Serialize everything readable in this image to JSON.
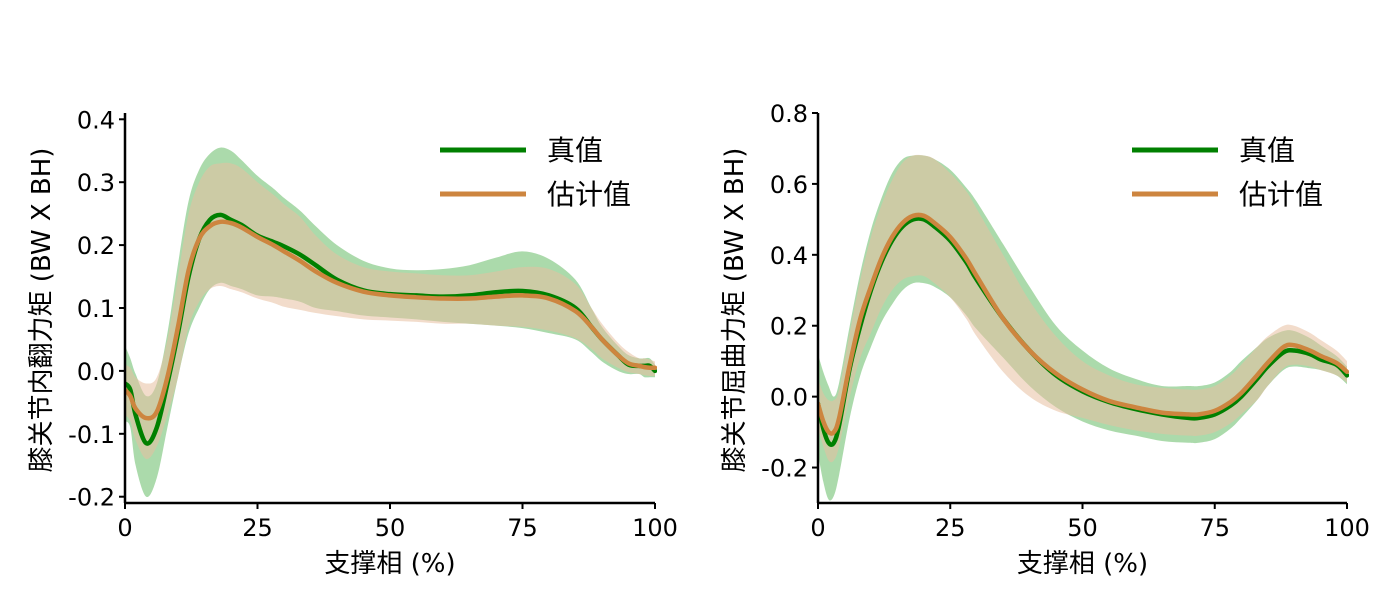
{
  "chart_data": [
    {
      "type": "line",
      "xlabel": "支撑相 (%)",
      "ylabel": "膝关节内翻力矩 (BW X BH)",
      "xlim": [
        0,
        100
      ],
      "ylim": [
        -0.21,
        0.41
      ],
      "xticks": [
        0,
        25,
        50,
        75,
        100
      ],
      "xtick_labels": [
        "0",
        "25",
        "50",
        "75",
        "100"
      ],
      "yticks": [
        -0.2,
        -0.1,
        0.0,
        0.1,
        0.2,
        0.3,
        0.4
      ],
      "ytick_labels": [
        "-0.2",
        "-0.1",
        "0.0",
        "0.1",
        "0.2",
        "0.3",
        "0.4"
      ],
      "grid": false,
      "legend_position": "top-right",
      "x": [
        0,
        1,
        2,
        4,
        6,
        8,
        10,
        12,
        14,
        16,
        18,
        20,
        22,
        25,
        28,
        30,
        33,
        36,
        40,
        45,
        50,
        55,
        60,
        65,
        70,
        75,
        80,
        85,
        88,
        90,
        93,
        95,
        97,
        98,
        99,
        100
      ],
      "series": [
        {
          "name": "真值",
          "color": "#008000",
          "mean": [
            -0.02,
            -0.03,
            -0.07,
            -0.115,
            -0.09,
            -0.02,
            0.06,
            0.15,
            0.21,
            0.24,
            0.248,
            0.24,
            0.232,
            0.215,
            0.205,
            0.198,
            0.185,
            0.168,
            0.145,
            0.128,
            0.122,
            0.12,
            0.118,
            0.12,
            0.125,
            0.127,
            0.12,
            0.1,
            0.07,
            0.05,
            0.025,
            0.01,
            0.008,
            0.008,
            0.008,
            0.0
          ],
          "upper": [
            0.04,
            0.02,
            -0.005,
            -0.04,
            -0.02,
            0.06,
            0.17,
            0.27,
            0.32,
            0.345,
            0.355,
            0.35,
            0.335,
            0.31,
            0.29,
            0.275,
            0.255,
            0.23,
            0.2,
            0.175,
            0.163,
            0.16,
            0.162,
            0.168,
            0.18,
            0.19,
            0.178,
            0.145,
            0.1,
            0.07,
            0.04,
            0.025,
            0.02,
            0.02,
            0.02,
            0.01
          ],
          "lower": [
            -0.08,
            -0.09,
            -0.15,
            -0.2,
            -0.17,
            -0.09,
            -0.01,
            0.06,
            0.1,
            0.13,
            0.14,
            0.135,
            0.13,
            0.12,
            0.118,
            0.115,
            0.11,
            0.1,
            0.095,
            0.088,
            0.085,
            0.082,
            0.078,
            0.075,
            0.072,
            0.068,
            0.06,
            0.05,
            0.03,
            0.015,
            0.0,
            -0.005,
            -0.005,
            -0.01,
            -0.01,
            -0.01
          ]
        },
        {
          "name": "估计值",
          "color": "#CD853F",
          "mean": [
            -0.03,
            -0.04,
            -0.06,
            -0.075,
            -0.065,
            -0.01,
            0.07,
            0.16,
            0.21,
            0.23,
            0.237,
            0.235,
            0.228,
            0.213,
            0.2,
            0.19,
            0.175,
            0.158,
            0.14,
            0.126,
            0.12,
            0.117,
            0.115,
            0.115,
            0.118,
            0.12,
            0.115,
            0.095,
            0.07,
            0.05,
            0.025,
            0.012,
            0.008,
            0.006,
            0.005,
            0.005
          ],
          "upper": [
            0.01,
            0.005,
            -0.01,
            -0.02,
            -0.01,
            0.05,
            0.15,
            0.25,
            0.3,
            0.325,
            0.33,
            0.33,
            0.322,
            0.3,
            0.28,
            0.265,
            0.245,
            0.215,
            0.185,
            0.165,
            0.158,
            0.155,
            0.152,
            0.152,
            0.158,
            0.165,
            0.162,
            0.138,
            0.1,
            0.075,
            0.045,
            0.03,
            0.02,
            0.02,
            0.018,
            0.015
          ],
          "lower": [
            -0.07,
            -0.08,
            -0.11,
            -0.14,
            -0.12,
            -0.07,
            -0.01,
            0.07,
            0.11,
            0.13,
            0.135,
            0.13,
            0.125,
            0.115,
            0.108,
            0.102,
            0.097,
            0.092,
            0.087,
            0.082,
            0.08,
            0.078,
            0.075,
            0.075,
            0.072,
            0.07,
            0.064,
            0.052,
            0.035,
            0.02,
            0.005,
            -0.002,
            -0.005,
            -0.007,
            -0.008,
            -0.008
          ]
        }
      ]
    },
    {
      "type": "line",
      "xlabel": "支撑相 (%)",
      "ylabel": "膝关节屈曲力矩 (BW X BH)",
      "xlim": [
        0,
        100
      ],
      "ylim": [
        -0.3,
        0.8
      ],
      "xticks": [
        0,
        25,
        50,
        75,
        100
      ],
      "xtick_labels": [
        "0",
        "25",
        "50",
        "75",
        "100"
      ],
      "yticks": [
        -0.2,
        0.0,
        0.2,
        0.4,
        0.6,
        0.8
      ],
      "ytick_labels": [
        "-0.2",
        "0.0",
        "0.2",
        "0.4",
        "0.6",
        "0.8"
      ],
      "grid": false,
      "legend_position": "top-right",
      "x": [
        0,
        1,
        2,
        3,
        4,
        6,
        8,
        10,
        12,
        14,
        16,
        18,
        20,
        22,
        25,
        28,
        30,
        35,
        40,
        45,
        50,
        55,
        60,
        65,
        70,
        72,
        75,
        78,
        80,
        83,
        85,
        88,
        90,
        93,
        95,
        98,
        100
      ],
      "series": [
        {
          "name": "真值",
          "color": "#008000",
          "mean": [
            -0.02,
            -0.09,
            -0.13,
            -0.13,
            -0.08,
            0.08,
            0.2,
            0.3,
            0.38,
            0.44,
            0.48,
            0.5,
            0.5,
            0.48,
            0.44,
            0.38,
            0.33,
            0.22,
            0.13,
            0.06,
            0.015,
            -0.015,
            -0.035,
            -0.05,
            -0.06,
            -0.06,
            -0.05,
            -0.025,
            0.0,
            0.05,
            0.085,
            0.125,
            0.13,
            0.12,
            0.105,
            0.09,
            0.06
          ],
          "upper": [
            0.12,
            0.07,
            0.03,
            0.0,
            0.04,
            0.2,
            0.35,
            0.47,
            0.56,
            0.63,
            0.67,
            0.68,
            0.68,
            0.67,
            0.64,
            0.59,
            0.55,
            0.43,
            0.31,
            0.2,
            0.13,
            0.08,
            0.05,
            0.03,
            0.03,
            0.03,
            0.04,
            0.07,
            0.1,
            0.14,
            0.165,
            0.185,
            0.185,
            0.165,
            0.145,
            0.115,
            0.085
          ],
          "lower": [
            -0.16,
            -0.24,
            -0.29,
            -0.28,
            -0.22,
            -0.06,
            0.06,
            0.14,
            0.21,
            0.26,
            0.3,
            0.32,
            0.32,
            0.31,
            0.28,
            0.23,
            0.19,
            0.11,
            0.03,
            -0.03,
            -0.07,
            -0.095,
            -0.11,
            -0.125,
            -0.13,
            -0.13,
            -0.12,
            -0.09,
            -0.06,
            -0.01,
            0.03,
            0.075,
            0.085,
            0.08,
            0.075,
            0.06,
            0.035
          ]
        },
        {
          "name": "估计值",
          "color": "#CD853F",
          "mean": [
            -0.02,
            -0.07,
            -0.1,
            -0.1,
            -0.06,
            0.09,
            0.22,
            0.31,
            0.39,
            0.45,
            0.49,
            0.51,
            0.51,
            0.49,
            0.45,
            0.39,
            0.34,
            0.22,
            0.13,
            0.065,
            0.02,
            -0.012,
            -0.03,
            -0.045,
            -0.05,
            -0.05,
            -0.04,
            -0.015,
            0.01,
            0.06,
            0.095,
            0.14,
            0.145,
            0.13,
            0.115,
            0.095,
            0.07
          ],
          "upper": [
            0.05,
            0.01,
            -0.01,
            -0.01,
            0.02,
            0.18,
            0.33,
            0.45,
            0.54,
            0.61,
            0.66,
            0.68,
            0.68,
            0.67,
            0.63,
            0.58,
            0.53,
            0.4,
            0.27,
            0.17,
            0.1,
            0.06,
            0.035,
            0.025,
            0.02,
            0.02,
            0.03,
            0.06,
            0.09,
            0.14,
            0.17,
            0.2,
            0.2,
            0.18,
            0.16,
            0.13,
            0.1
          ],
          "lower": [
            -0.09,
            -0.14,
            -0.18,
            -0.18,
            -0.14,
            0.0,
            0.11,
            0.18,
            0.25,
            0.3,
            0.33,
            0.34,
            0.34,
            0.32,
            0.28,
            0.22,
            0.17,
            0.07,
            0.0,
            -0.04,
            -0.06,
            -0.08,
            -0.095,
            -0.105,
            -0.11,
            -0.11,
            -0.1,
            -0.075,
            -0.05,
            -0.01,
            0.03,
            0.08,
            0.09,
            0.085,
            0.075,
            0.06,
            0.04
          ]
        }
      ]
    }
  ]
}
